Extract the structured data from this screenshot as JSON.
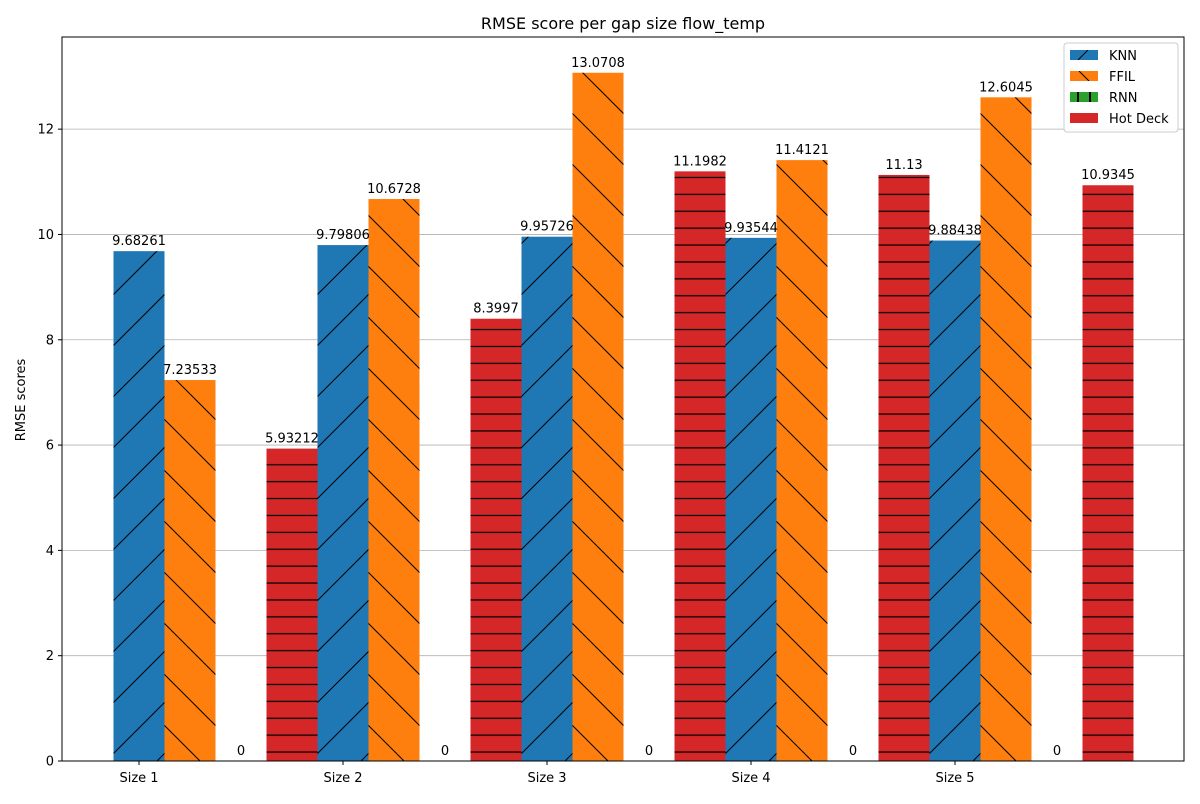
{
  "chart_data": {
    "type": "bar",
    "title": "RMSE score per gap size flow_temp",
    "xlabel": "",
    "ylabel": "RMSE scores",
    "categories": [
      "Size 1",
      "Size 2",
      "Size 3",
      "Size 4",
      "Size 5"
    ],
    "ylim": [
      0,
      13.75
    ],
    "yticks": [
      0,
      2,
      4,
      6,
      8,
      10,
      12
    ],
    "grid": true,
    "legend_position": "top-right",
    "series": [
      {
        "name": "KNN",
        "color": "#1f77b4",
        "hatch": "/",
        "values": [
          9.68261,
          9.79806,
          9.95726,
          9.93544,
          9.88438
        ],
        "labels": [
          "9.68261",
          "9.79806",
          "9.95726",
          "9.93544",
          "9.88438"
        ]
      },
      {
        "name": "FFIL",
        "color": "#ff7f0e",
        "hatch": "\\",
        "values": [
          7.23533,
          10.6728,
          13.0708,
          11.4121,
          12.6045
        ],
        "labels": [
          "7.23533",
          "10.6728",
          "13.0708",
          "11.4121",
          "12.6045"
        ]
      },
      {
        "name": "RNN",
        "color": "#2ca02c",
        "hatch": "|",
        "values": [
          0,
          0,
          0,
          0,
          0
        ],
        "labels": [
          "0",
          "0",
          "0",
          "0",
          "0"
        ]
      },
      {
        "name": "Hot Deck",
        "color": "#d62728",
        "hatch": "-",
        "values": [
          5.93212,
          8.3997,
          11.1982,
          11.13,
          10.9345
        ],
        "labels": [
          "5.93212",
          "8.3997",
          "11.1982",
          "11.13",
          "10.9345"
        ]
      }
    ]
  }
}
